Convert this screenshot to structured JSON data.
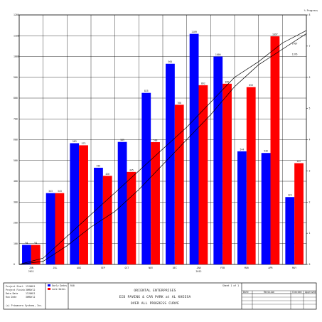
{
  "corner_label": "% Progress",
  "chart_data": {
    "type": "bar",
    "categories": [
      "JUN",
      "JUL",
      "AUG",
      "SEP",
      "OCT",
      "NOV",
      "DEC",
      "JAN",
      "FEB",
      "MAR",
      "APR",
      "MAY"
    ],
    "year_labels": [
      {
        "category": "JUN",
        "label": "2011"
      },
      {
        "category": "JAN",
        "label": "2012"
      }
    ],
    "series": [
      {
        "name": "Early Dates",
        "color": "#0000ff",
        "values": [
          94,
          343,
          583,
          465,
          589,
          825,
          965,
          1109,
          1000,
          544,
          536,
          324
        ]
      },
      {
        "name": "Late Dates",
        "color": "#ff0000",
        "values": [
          94,
          343,
          573,
          426,
          445,
          588,
          768,
          862,
          869,
          853,
          1097,
          487
        ]
      }
    ],
    "curves": [
      {
        "label": "Early",
        "values": [
          0.2,
          0.9,
          1.6,
          2.3,
          3.0,
          3.7,
          4.4,
          5.2,
          6.0,
          6.5,
          7.1,
          7.5
        ]
      },
      {
        "label": "Late",
        "values": [
          0.1,
          0.6,
          1.2,
          1.7,
          2.4,
          3.2,
          4.0,
          4.8,
          5.7,
          6.4,
          6.9,
          7.4
        ]
      }
    ],
    "curve_end_labels": [
      "1407",
      "1376"
    ],
    "ylim": [
      0,
      1200
    ],
    "y_ticks": [
      "0",
      "100",
      "200",
      "300",
      "400",
      "500",
      "600",
      "700",
      "800",
      "900",
      "1000",
      "1100",
      "1200"
    ],
    "y2lim": [
      0,
      8
    ],
    "y2_ticks": [
      "0",
      "1",
      "2",
      "3",
      "4",
      "5",
      "6",
      "7",
      "8"
    ],
    "grid": true,
    "legend": "bottom-left"
  },
  "footer": {
    "info": [
      {
        "label": "Project Start",
        "value": "13JUN11"
      },
      {
        "label": "Project Finish",
        "value": "30MAY12"
      },
      {
        "label": "Data Date",
        "value": "13JUN11"
      },
      {
        "label": "Run Date",
        "value": "30MAY12"
      }
    ],
    "software": "(c) Primavera Systems, Inc.",
    "legend_items": [
      "Early Dates",
      "Late Dates"
    ],
    "code": "R40",
    "sheet": "Sheet 1 of 1",
    "company": "ORIENTAL ENTERPRISES",
    "project": "EID PAVING & CAR PARK at AL KHEESA",
    "report": "OVER ALL PROGRESS CURVE",
    "rev_headers": [
      "Date",
      "Revision",
      "Checked",
      "Approved"
    ]
  }
}
